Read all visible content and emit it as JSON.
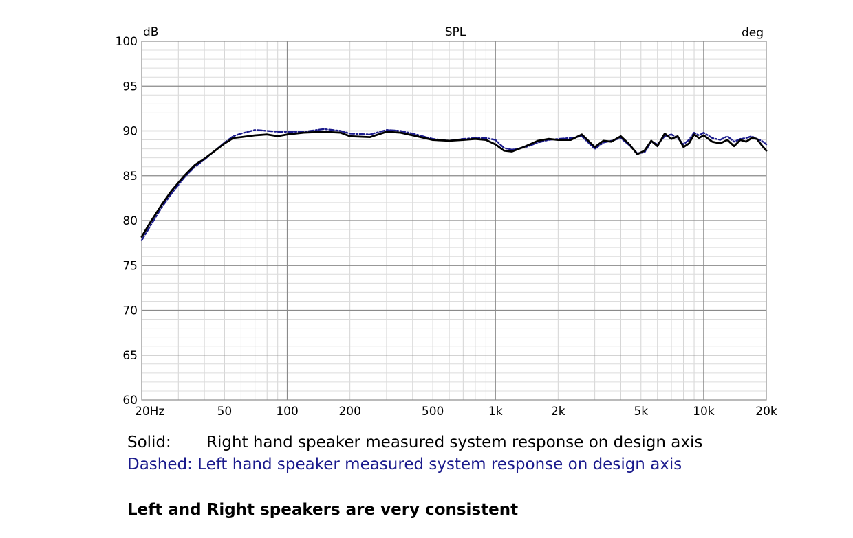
{
  "chart_data": {
    "type": "line",
    "title": "SPL",
    "ylabel_unit": "dB",
    "right_unit": "deg",
    "xscale": "log",
    "xlim": [
      20,
      20000
    ],
    "ylim": [
      60,
      100
    ],
    "x_ticks": [
      {
        "value": 20,
        "label": "20Hz"
      },
      {
        "value": 50,
        "label": "50"
      },
      {
        "value": 100,
        "label": "100"
      },
      {
        "value": 200,
        "label": "200"
      },
      {
        "value": 500,
        "label": "500"
      },
      {
        "value": 1000,
        "label": "1k"
      },
      {
        "value": 2000,
        "label": "2k"
      },
      {
        "value": 5000,
        "label": "5k"
      },
      {
        "value": 10000,
        "label": "10k"
      },
      {
        "value": 20000,
        "label": "20k"
      }
    ],
    "y_ticks": [
      60,
      65,
      70,
      75,
      80,
      85,
      90,
      95,
      100
    ],
    "grid": true,
    "series": [
      {
        "style": "solid",
        "color": "#000000",
        "x": [
          20,
          22,
          25,
          28,
          32,
          36,
          40,
          45,
          50,
          55,
          60,
          70,
          80,
          90,
          100,
          120,
          150,
          180,
          200,
          250,
          300,
          350,
          400,
          500,
          600,
          700,
          800,
          900,
          1000,
          1100,
          1200,
          1400,
          1600,
          1800,
          2000,
          2300,
          2600,
          3000,
          3300,
          3600,
          4000,
          4400,
          4800,
          5200,
          5600,
          6000,
          6500,
          7000,
          7500,
          8000,
          8500,
          9000,
          9500,
          10000,
          11000,
          12000,
          13000,
          14000,
          15000,
          16000,
          17000,
          18000,
          19000,
          20000
        ],
        "values": [
          78.2,
          79.8,
          81.8,
          83.4,
          85.0,
          86.2,
          86.9,
          87.8,
          88.6,
          89.2,
          89.3,
          89.5,
          89.6,
          89.4,
          89.6,
          89.8,
          89.9,
          89.8,
          89.4,
          89.3,
          89.9,
          89.8,
          89.5,
          89.0,
          88.9,
          89.0,
          89.1,
          89.0,
          88.5,
          87.8,
          87.7,
          88.3,
          88.9,
          89.1,
          89.0,
          89.0,
          89.6,
          88.2,
          88.9,
          88.8,
          89.4,
          88.5,
          87.4,
          87.8,
          88.9,
          88.3,
          89.7,
          89.1,
          89.4,
          88.2,
          88.6,
          89.6,
          89.2,
          89.5,
          88.8,
          88.6,
          89.0,
          88.3,
          89.0,
          88.8,
          89.2,
          89.1,
          88.4,
          87.8
        ]
      },
      {
        "style": "dashed",
        "color": "#1a1a8c",
        "x": [
          20,
          22,
          25,
          28,
          32,
          36,
          40,
          45,
          50,
          55,
          60,
          70,
          80,
          90,
          100,
          120,
          150,
          180,
          200,
          250,
          300,
          350,
          400,
          500,
          600,
          700,
          800,
          900,
          1000,
          1100,
          1200,
          1400,
          1600,
          1800,
          2000,
          2300,
          2600,
          3000,
          3300,
          3600,
          4000,
          4400,
          4800,
          5200,
          5600,
          6000,
          6500,
          7000,
          7500,
          8000,
          8500,
          9000,
          9500,
          10000,
          11000,
          12000,
          13000,
          14000,
          15000,
          16000,
          17000,
          18000,
          19000,
          20000
        ],
        "values": [
          77.8,
          79.4,
          81.5,
          83.1,
          84.8,
          86.0,
          86.8,
          87.8,
          88.7,
          89.4,
          89.7,
          90.1,
          90.0,
          89.9,
          89.9,
          89.9,
          90.2,
          90.0,
          89.7,
          89.6,
          90.1,
          90.0,
          89.7,
          89.1,
          88.9,
          89.1,
          89.2,
          89.2,
          89.0,
          88.1,
          87.9,
          88.2,
          88.7,
          89.0,
          89.1,
          89.2,
          89.4,
          88.0,
          88.7,
          88.9,
          89.2,
          88.4,
          87.5,
          87.6,
          88.8,
          88.5,
          89.4,
          89.6,
          89.2,
          88.5,
          89.0,
          89.8,
          89.5,
          89.8,
          89.2,
          89.0,
          89.4,
          88.8,
          89.1,
          89.2,
          89.4,
          89.1,
          88.9,
          88.5
        ]
      }
    ]
  },
  "captions": {
    "solid": "Solid:       Right hand speaker measured system response on design axis",
    "dashed": "Dashed: Left hand speaker measured system response on design axis",
    "note": "Left and Right speakers are very consistent"
  }
}
